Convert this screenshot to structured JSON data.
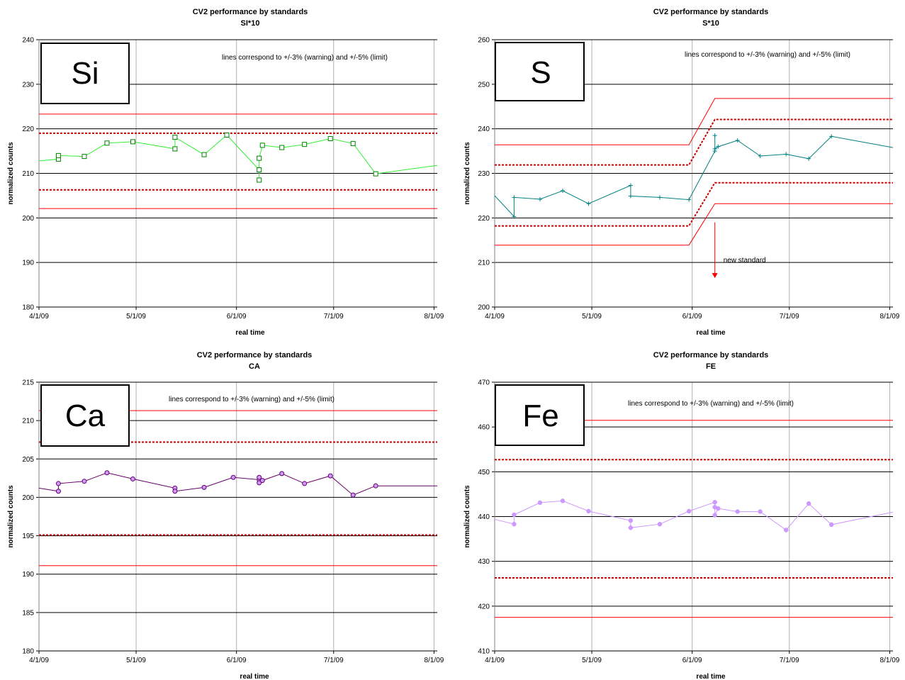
{
  "chart_data": [
    {
      "type": "line",
      "title": "CV2 performance by standards",
      "subtitle": "SI*10",
      "element_label": "Si",
      "annotation": "lines correspond to +/-3% (warning) and +/-5% (limit)",
      "xlabel": "real time",
      "ylabel": "normalized counts",
      "ylim": [
        180,
        240
      ],
      "yticks": [
        180,
        190,
        200,
        210,
        220,
        230,
        240
      ],
      "xlim": [
        "2009-04-01",
        "2009-08-02"
      ],
      "xtick_labels": [
        "4/1/09",
        "5/1/09",
        "6/1/09",
        "7/1/09",
        "8/1/09"
      ],
      "xtick_dates": [
        "2009-04-01",
        "2009-05-01",
        "2009-06-01",
        "2009-07-01",
        "2009-08-01"
      ],
      "grid": true,
      "series_color": "#33ee33",
      "marker": "square",
      "limit_lines": [
        {
          "kind": "limit",
          "style": "solid",
          "color": "#ff0000",
          "value": 223.3
        },
        {
          "kind": "warning",
          "style": "dotted",
          "color": "#cc0000",
          "value": 219.0
        },
        {
          "kind": "warning",
          "style": "dotted",
          "color": "#cc0000",
          "value": 206.3
        },
        {
          "kind": "limit",
          "style": "solid",
          "color": "#ff0000",
          "value": 202.1
        }
      ],
      "points": [
        {
          "x": "2009-04-01",
          "y": 212.8,
          "marker": false
        },
        {
          "x": "2009-04-07",
          "y": 213.2
        },
        {
          "x": "2009-04-07",
          "y": 214.0
        },
        {
          "x": "2009-04-15",
          "y": 213.8
        },
        {
          "x": "2009-04-22",
          "y": 216.8
        },
        {
          "x": "2009-04-30",
          "y": 217.1
        },
        {
          "x": "2009-05-13",
          "y": 215.5
        },
        {
          "x": "2009-05-13",
          "y": 218.1
        },
        {
          "x": "2009-05-22",
          "y": 214.2
        },
        {
          "x": "2009-05-29",
          "y": 218.6
        },
        {
          "x": "2009-06-08",
          "y": 210.8
        },
        {
          "x": "2009-06-08",
          "y": 208.5
        },
        {
          "x": "2009-06-08",
          "y": 213.4
        },
        {
          "x": "2009-06-09",
          "y": 216.3
        },
        {
          "x": "2009-06-15",
          "y": 215.8
        },
        {
          "x": "2009-06-22",
          "y": 216.5
        },
        {
          "x": "2009-06-30",
          "y": 217.8
        },
        {
          "x": "2009-07-07",
          "y": 216.7
        },
        {
          "x": "2009-07-14",
          "y": 209.9
        },
        {
          "x": "2009-08-02",
          "y": 211.8,
          "marker": false
        }
      ]
    },
    {
      "type": "line",
      "title": "CV2 performance by standards",
      "subtitle": "S*10",
      "element_label": "S",
      "annotation": "lines correspond to +/-3% (warning) and +/-5% (limit)",
      "arrow_label": "new standard",
      "arrow": {
        "x": "2009-06-08",
        "from_y": 219,
        "to_y": 206.5
      },
      "xlabel": "real time",
      "ylabel": "normalized counts",
      "ylim": [
        200,
        260
      ],
      "yticks": [
        200,
        210,
        220,
        230,
        240,
        250,
        260
      ],
      "xlim": [
        "2009-04-01",
        "2009-08-02"
      ],
      "xtick_labels": [
        "4/1/09",
        "5/1/09",
        "6/1/09",
        "7/1/09",
        "8/1/09"
      ],
      "xtick_dates": [
        "2009-04-01",
        "2009-05-01",
        "2009-06-01",
        "2009-07-01",
        "2009-08-01"
      ],
      "grid": true,
      "series_color": "#008080",
      "marker": "plus",
      "limit_lines": [
        {
          "kind": "limit",
          "style": "solid",
          "color": "#ff0000",
          "points": [
            [
              "2009-04-01",
              236.4
            ],
            [
              "2009-05-31",
              236.4
            ],
            [
              "2009-06-08",
              246.8
            ],
            [
              "2009-08-02",
              246.8
            ]
          ]
        },
        {
          "kind": "warning",
          "style": "dotted",
          "color": "#cc0000",
          "points": [
            [
              "2009-04-01",
              231.9
            ],
            [
              "2009-05-31",
              231.9
            ],
            [
              "2009-06-08",
              242.1
            ],
            [
              "2009-08-02",
              242.1
            ]
          ]
        },
        {
          "kind": "warning",
          "style": "dotted",
          "color": "#cc0000",
          "points": [
            [
              "2009-04-01",
              218.2
            ],
            [
              "2009-05-31",
              218.2
            ],
            [
              "2009-06-08",
              227.9
            ],
            [
              "2009-08-02",
              227.9
            ]
          ]
        },
        {
          "kind": "limit",
          "style": "solid",
          "color": "#ff0000",
          "points": [
            [
              "2009-04-01",
              213.9
            ],
            [
              "2009-05-31",
              213.9
            ],
            [
              "2009-06-08",
              223.2
            ],
            [
              "2009-08-02",
              223.2
            ]
          ]
        }
      ],
      "points": [
        {
          "x": "2009-04-01",
          "y": 225.0,
          "marker": false
        },
        {
          "x": "2009-04-07",
          "y": 220.3
        },
        {
          "x": "2009-04-07",
          "y": 224.6
        },
        {
          "x": "2009-04-15",
          "y": 224.2
        },
        {
          "x": "2009-04-22",
          "y": 226.1
        },
        {
          "x": "2009-04-30",
          "y": 223.2
        },
        {
          "x": "2009-05-13",
          "y": 227.3
        },
        {
          "x": "2009-05-13",
          "y": 224.9
        },
        {
          "x": "2009-05-22",
          "y": 224.6
        },
        {
          "x": "2009-05-31",
          "y": 224.1
        },
        {
          "x": "2009-06-08",
          "y": 235.0
        },
        {
          "x": "2009-06-08",
          "y": 238.5
        },
        {
          "x": "2009-06-08",
          "y": 235.5
        },
        {
          "x": "2009-06-09",
          "y": 236.0
        },
        {
          "x": "2009-06-15",
          "y": 237.4
        },
        {
          "x": "2009-06-22",
          "y": 233.9
        },
        {
          "x": "2009-06-30",
          "y": 234.3
        },
        {
          "x": "2009-07-07",
          "y": 233.3
        },
        {
          "x": "2009-07-14",
          "y": 238.3
        },
        {
          "x": "2009-08-02",
          "y": 235.8,
          "marker": false
        }
      ]
    },
    {
      "type": "line",
      "title": "CV2 performance by standards",
      "subtitle": "CA",
      "element_label": "Ca",
      "annotation": "lines correspond to +/-3% (warning) and +/-5% (limit)",
      "xlabel": "real time",
      "ylabel": "normalized counts",
      "ylim": [
        180,
        215
      ],
      "yticks": [
        180,
        185,
        190,
        195,
        200,
        205,
        210,
        215
      ],
      "xlim": [
        "2009-04-01",
        "2009-08-02"
      ],
      "xtick_labels": [
        "4/1/09",
        "5/1/09",
        "6/1/09",
        "7/1/09",
        "8/1/09"
      ],
      "xtick_dates": [
        "2009-04-01",
        "2009-05-01",
        "2009-06-01",
        "2009-07-01",
        "2009-08-01"
      ],
      "grid": true,
      "series_color": "#660066",
      "marker": "circle",
      "marker_fill": "#cc99ff",
      "limit_lines": [
        {
          "kind": "limit",
          "style": "solid",
          "color": "#ff0000",
          "value": 211.3
        },
        {
          "kind": "warning",
          "style": "dotted",
          "color": "#cc0000",
          "value": 207.2
        },
        {
          "kind": "warning",
          "style": "dotted",
          "color": "#cc0000",
          "value": 195.1
        },
        {
          "kind": "limit",
          "style": "solid",
          "color": "#ff0000",
          "value": 191.1
        }
      ],
      "points": [
        {
          "x": "2009-04-01",
          "y": 201.2,
          "marker": false
        },
        {
          "x": "2009-04-07",
          "y": 200.8
        },
        {
          "x": "2009-04-07",
          "y": 201.8
        },
        {
          "x": "2009-04-15",
          "y": 202.1
        },
        {
          "x": "2009-04-22",
          "y": 203.2
        },
        {
          "x": "2009-04-30",
          "y": 202.4
        },
        {
          "x": "2009-05-13",
          "y": 201.2
        },
        {
          "x": "2009-05-13",
          "y": 200.8
        },
        {
          "x": "2009-05-22",
          "y": 201.3
        },
        {
          "x": "2009-05-31",
          "y": 202.6
        },
        {
          "x": "2009-06-08",
          "y": 202.3
        },
        {
          "x": "2009-06-08",
          "y": 202.6
        },
        {
          "x": "2009-06-08",
          "y": 201.9
        },
        {
          "x": "2009-06-09",
          "y": 202.2
        },
        {
          "x": "2009-06-15",
          "y": 203.1
        },
        {
          "x": "2009-06-22",
          "y": 201.8
        },
        {
          "x": "2009-06-30",
          "y": 202.8
        },
        {
          "x": "2009-07-07",
          "y": 200.3
        },
        {
          "x": "2009-07-14",
          "y": 201.5
        },
        {
          "x": "2009-08-02",
          "y": 201.5,
          "marker": false
        }
      ]
    },
    {
      "type": "line",
      "title": "CV2 performance by standards",
      "subtitle": "FE",
      "element_label": "Fe",
      "annotation": "lines correspond to +/-3% (warning) and +/-5% (limit)",
      "xlabel": "real time",
      "ylabel": "normalized counts",
      "ylim": [
        410,
        470
      ],
      "yticks": [
        410,
        420,
        430,
        440,
        450,
        460,
        470
      ],
      "xlim": [
        "2009-04-01",
        "2009-08-02"
      ],
      "xtick_labels": [
        "4/1/09",
        "5/1/09",
        "6/1/09",
        "7/1/09",
        "8/1/09"
      ],
      "xtick_dates": [
        "2009-04-01",
        "2009-05-01",
        "2009-06-01",
        "2009-07-01",
        "2009-08-01"
      ],
      "grid": true,
      "series_color": "#cc99ff",
      "marker": "dot",
      "limit_lines": [
        {
          "kind": "limit",
          "style": "solid",
          "color": "#ff0000",
          "value": 461.5
        },
        {
          "kind": "warning",
          "style": "dotted",
          "color": "#cc0000",
          "value": 452.7
        },
        {
          "kind": "warning",
          "style": "dotted",
          "color": "#cc0000",
          "value": 426.3
        },
        {
          "kind": "limit",
          "style": "solid",
          "color": "#ff0000",
          "value": 417.5
        }
      ],
      "points": [
        {
          "x": "2009-04-01",
          "y": 439.4,
          "marker": false
        },
        {
          "x": "2009-04-07",
          "y": 438.3
        },
        {
          "x": "2009-04-07",
          "y": 440.4
        },
        {
          "x": "2009-04-15",
          "y": 443.1
        },
        {
          "x": "2009-04-22",
          "y": 443.5
        },
        {
          "x": "2009-04-30",
          "y": 441.2
        },
        {
          "x": "2009-05-13",
          "y": 439.1
        },
        {
          "x": "2009-05-13",
          "y": 437.5
        },
        {
          "x": "2009-05-22",
          "y": 438.3
        },
        {
          "x": "2009-05-31",
          "y": 441.2
        },
        {
          "x": "2009-06-08",
          "y": 443.2
        },
        {
          "x": "2009-06-08",
          "y": 442.1
        },
        {
          "x": "2009-06-08",
          "y": 440.3
        },
        {
          "x": "2009-06-09",
          "y": 441.8
        },
        {
          "x": "2009-06-15",
          "y": 441.1
        },
        {
          "x": "2009-06-22",
          "y": 441.1
        },
        {
          "x": "2009-06-30",
          "y": 437.0
        },
        {
          "x": "2009-07-07",
          "y": 442.9
        },
        {
          "x": "2009-07-14",
          "y": 438.2
        },
        {
          "x": "2009-08-02",
          "y": 441.0,
          "marker": false
        }
      ]
    }
  ]
}
